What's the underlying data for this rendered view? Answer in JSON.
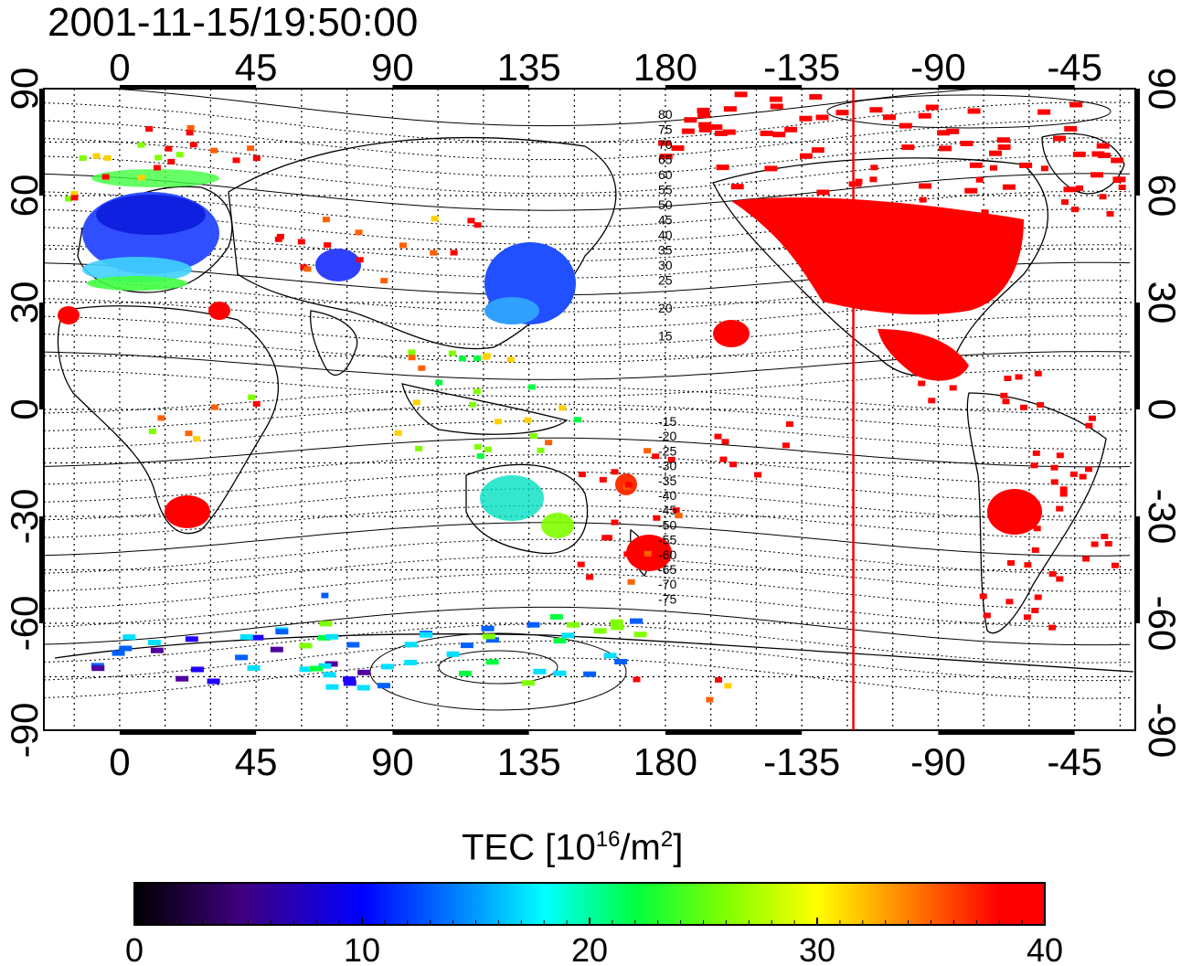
{
  "title": "2001-11-15/19:50:00",
  "map": {
    "longitude_ticks": [
      "0",
      "45",
      "90",
      "135",
      "180",
      "-135",
      "-90",
      "-45"
    ],
    "latitude_ticks": [
      "90",
      "60",
      "30",
      "0",
      "-30",
      "-60",
      "-90"
    ],
    "contour_labels": [
      "80",
      "75",
      "70",
      "65",
      "60",
      "55",
      "50",
      "45",
      "40",
      "35",
      "30",
      "25",
      "20",
      "15",
      "-15",
      "-20",
      "-25",
      "-30",
      "-35",
      "-40",
      "-45",
      "-50",
      "-55",
      "-60",
      "-65",
      "-70",
      "-75"
    ],
    "marker_line": {
      "longitude": -118,
      "color": "#ff0000"
    }
  },
  "colorbar": {
    "title_prefix": "TEC  [10",
    "title_exp1": "16",
    "title_mid": "/m",
    "title_exp2": "2",
    "title_suffix": "]",
    "ticks": [
      "0",
      "10",
      "20",
      "30",
      "40"
    ],
    "range": [
      0,
      40
    ]
  },
  "colors": {
    "low": "#000000",
    "mid_blue": "#0000ff",
    "cyan": "#00ffff",
    "green": "#00ff00",
    "yellow": "#ffff00",
    "high": "#ff0000"
  }
}
